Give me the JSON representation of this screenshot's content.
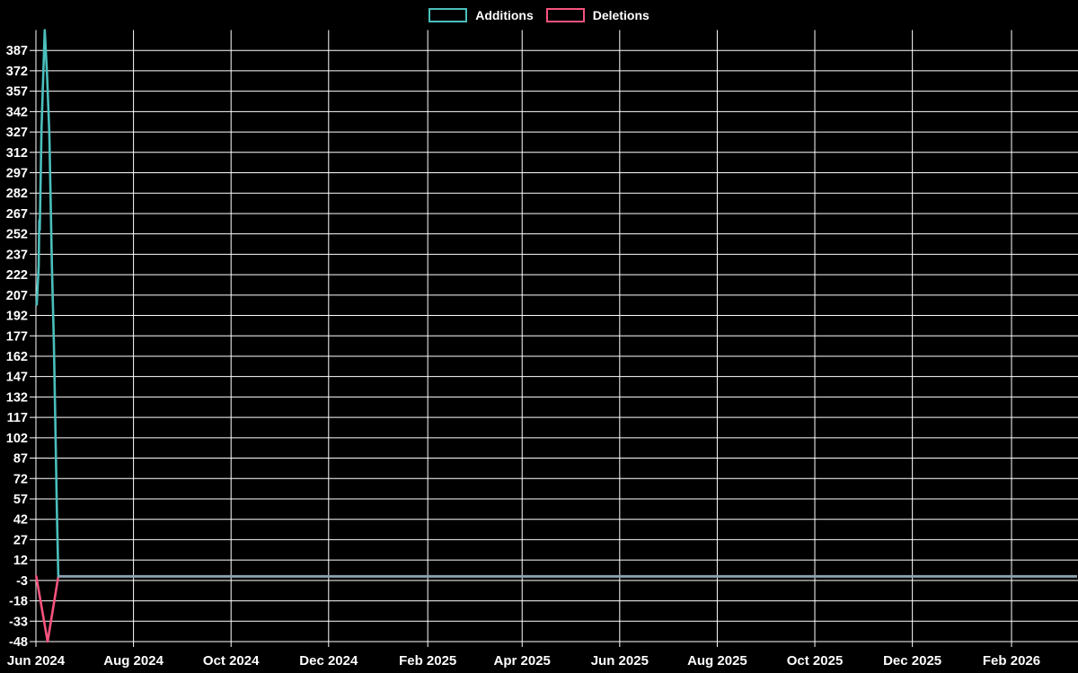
{
  "chart_data": {
    "type": "line",
    "title": "",
    "background_color": "#000000",
    "text_color": "#ffffff",
    "grid": {
      "on": true,
      "color": "#ffffff"
    },
    "legend": {
      "position": "top-center",
      "items": [
        {
          "label": "Additions",
          "color": "#4abfbc"
        },
        {
          "label": "Deletions",
          "color": "#f8537e"
        }
      ]
    },
    "x_axis": {
      "start_label": "Jun 2024",
      "tick_labels": [
        "Jun 2024",
        "Aug 2024",
        "Oct 2024",
        "Dec 2024",
        "Feb 2025",
        "Apr 2025",
        "Jun 2025",
        "Aug 2025",
        "Oct 2025",
        "Dec 2025",
        "Feb 2026"
      ],
      "tick_day_offsets": [
        0,
        61,
        122,
        183,
        245,
        304,
        365,
        426,
        487,
        548,
        610
      ],
      "domain_day_offsets": [
        0,
        651
      ]
    },
    "y_axis": {
      "tick_labels": [
        387,
        372,
        357,
        342,
        327,
        312,
        297,
        282,
        267,
        252,
        237,
        222,
        207,
        192,
        177,
        162,
        147,
        132,
        117,
        102,
        87,
        72,
        57,
        42,
        27,
        12,
        -3,
        -18,
        -33,
        -48
      ],
      "min": -48,
      "max": 402,
      "step": 15
    },
    "series": [
      {
        "name": "Additions",
        "color": "#4abfbc",
        "points_day_value": [
          [
            0.5,
            200
          ],
          [
            1.7,
            228
          ],
          [
            2.1,
            262
          ],
          [
            2.4,
            255
          ],
          [
            3.5,
            330
          ],
          [
            5.5,
            402
          ],
          [
            7.0,
            368
          ],
          [
            8.4,
            325
          ],
          [
            10.0,
            228
          ],
          [
            11.2,
            173
          ],
          [
            12.4,
            95
          ],
          [
            13.0,
            54
          ],
          [
            14.0,
            0
          ]
        ]
      },
      {
        "name": "Deletions",
        "color": "#f8537e",
        "points_day_value": [
          [
            0.2,
            0
          ],
          [
            7.3,
            -48
          ],
          [
            14.0,
            0
          ]
        ]
      }
    ],
    "flat_overlap_segment": {
      "note": "both series equal 0 from day 14 to end; overlapping strokes render blue-gray",
      "from_day": 14,
      "to_day": 651,
      "value": 0,
      "color": "#8ca4b0"
    },
    "peak_additions": 402,
    "min_deletions": -48
  }
}
